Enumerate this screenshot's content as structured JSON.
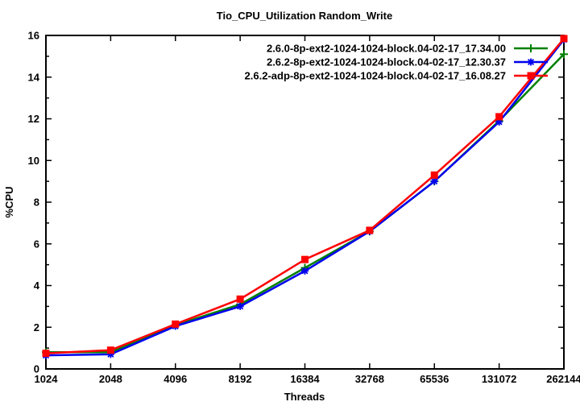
{
  "chart_data": {
    "type": "line",
    "title": "Tio_CPU_Utilization Random_Write",
    "xlabel": "Threads",
    "ylabel": "%CPU",
    "categories": [
      "1024",
      "2048",
      "4096",
      "8192",
      "16384",
      "32768",
      "65536",
      "131072",
      "262144"
    ],
    "ylim": [
      0,
      16
    ],
    "y_major_step": 2,
    "y_minor_step": 1,
    "grid": false,
    "legend_position": "top-right",
    "axis_color": "#000000",
    "background_color": "#ffffff",
    "series": [
      {
        "name": "2.6.0-8p-ext2-1024-1024-block.04-02-17_17.34.00",
        "color": "#008000",
        "marker": "plus",
        "values": [
          0.8,
          0.8,
          2.1,
          3.1,
          4.85,
          6.6,
          9.0,
          11.9,
          15.1
        ]
      },
      {
        "name": "2.6.2-8p-ext2-1024-1024-block.04-02-17_12.30.37",
        "color": "#0000ee",
        "marker": "asterisk",
        "values": [
          0.65,
          0.7,
          2.05,
          3.0,
          4.7,
          6.6,
          9.0,
          11.85,
          15.8
        ]
      },
      {
        "name": "2.6.2-adp-8p-ext2-1024-1024-block.04-02-17_16.08.27",
        "color": "#ff0000",
        "marker": "filled-square",
        "values": [
          0.75,
          0.9,
          2.15,
          3.35,
          5.25,
          6.65,
          9.3,
          12.1,
          15.85
        ]
      }
    ]
  }
}
